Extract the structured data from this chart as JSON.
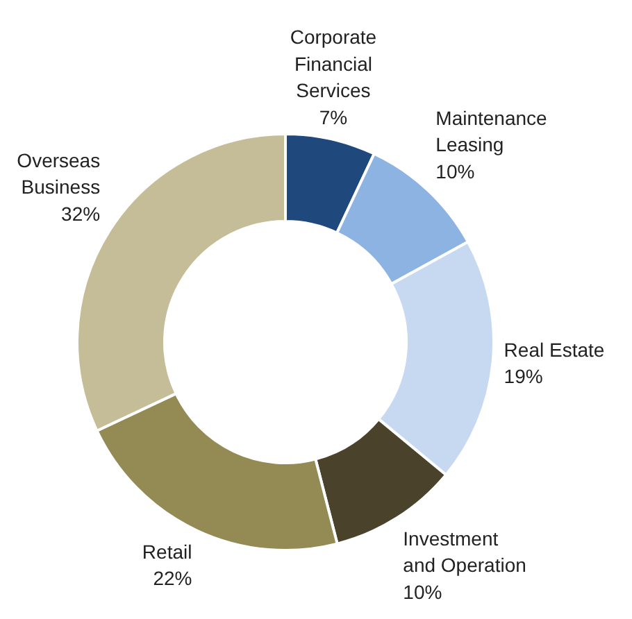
{
  "chart_data": {
    "type": "donut",
    "categories": [
      "Corporate Financial Services",
      "Maintenance Leasing",
      "Real Estate",
      "Investment and Operation",
      "Retail",
      "Overseas Business"
    ],
    "values": [
      7,
      10,
      19,
      10,
      22,
      32
    ],
    "colors": [
      "#1f497d",
      "#8db3e2",
      "#c6d9f1",
      "#4a422a",
      "#948a54",
      "#c4bd97"
    ],
    "value_labels": [
      "7%",
      "10%",
      "19%",
      "10%",
      "22%",
      "32%"
    ]
  }
}
